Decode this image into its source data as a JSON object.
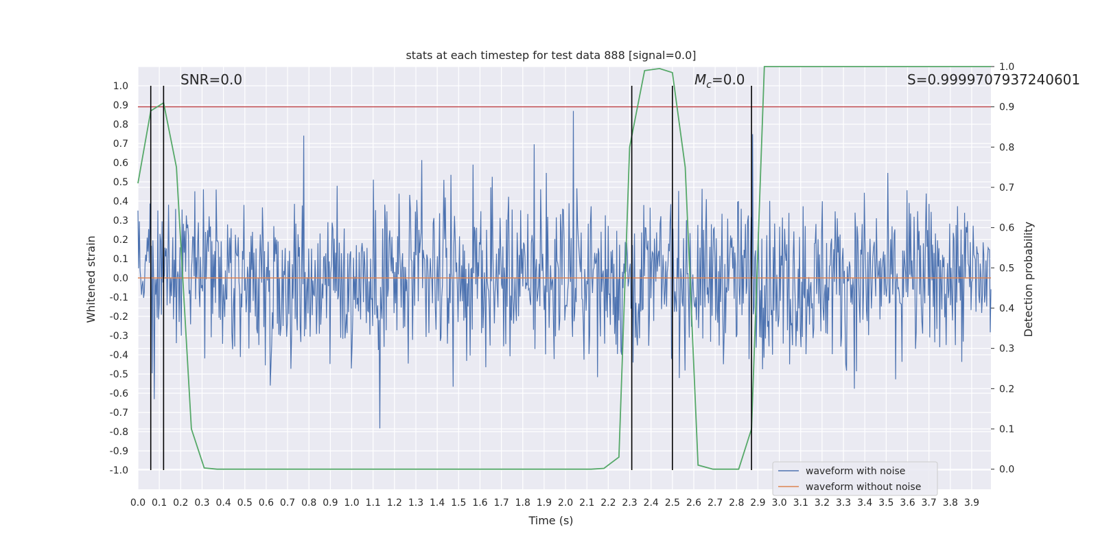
{
  "chart_data": {
    "type": "line",
    "title": "stats at each timestep for test data 888 [signal=0.0]",
    "xlabel": "Time (s)",
    "ylabel": "Whitened strain",
    "y2label": "Detection probability",
    "xlim": [
      0.0,
      3.99
    ],
    "ylim": [
      -1.1,
      1.1
    ],
    "y2lim": [
      -0.05,
      1.0
    ],
    "x_ticks": [
      "0.0",
      "0.1",
      "0.2",
      "0.3",
      "0.4",
      "0.5",
      "0.6",
      "0.7",
      "0.8",
      "0.9",
      "1.0",
      "1.1",
      "1.2",
      "1.3",
      "1.4",
      "1.5",
      "1.6",
      "1.7",
      "1.8",
      "1.9",
      "2.0",
      "2.1",
      "2.2",
      "2.3",
      "2.4",
      "2.5",
      "2.6",
      "2.7",
      "2.8",
      "2.9",
      "3.0",
      "3.1",
      "3.2",
      "3.3",
      "3.4",
      "3.5",
      "3.6",
      "3.7",
      "3.8",
      "3.9"
    ],
    "y_ticks": [
      "1.0",
      "0.9",
      "0.8",
      "0.7",
      "0.6",
      "0.5",
      "0.4",
      "0.3",
      "0.2",
      "0.1",
      "0.0",
      "-0.1",
      "-0.2",
      "-0.3",
      "-0.4",
      "-0.5",
      "-0.6",
      "-0.7",
      "-0.8",
      "-0.9",
      "-1.0"
    ],
    "y2_ticks": [
      "1.0",
      "0.9",
      "0.8",
      "0.7",
      "0.6",
      "0.5",
      "0.4",
      "0.3",
      "0.2",
      "0.1",
      "0.0"
    ],
    "grid": true,
    "legend_position": "bottom-right",
    "series": [
      {
        "name": "waveform with noise",
        "color": "#4c72b0",
        "description_kind": "dense noise trace",
        "sample_count": 1200,
        "amplitude_range": [
          -0.95,
          1.0
        ]
      },
      {
        "name": "waveform without noise",
        "color": "#dd8452",
        "x": [
          0.0,
          3.99
        ],
        "y": [
          0.0,
          0.0
        ]
      },
      {
        "name": "",
        "axis": "y2",
        "color": "#55a868",
        "x": [
          0.0,
          0.06,
          0.12,
          0.18,
          0.25,
          0.31,
          0.37,
          0.5,
          1.0,
          1.5,
          2.0,
          2.12,
          2.18,
          2.25,
          2.3,
          2.37,
          2.44,
          2.5,
          2.56,
          2.62,
          2.69,
          2.75,
          2.81,
          2.87,
          2.93,
          3.0,
          3.5,
          3.99
        ],
        "y": [
          0.71,
          0.89,
          0.91,
          0.75,
          0.1,
          0.003,
          0.0,
          0.0,
          0.0,
          0.0,
          0.0,
          0.0,
          0.002,
          0.03,
          0.8,
          0.99,
          0.995,
          0.985,
          0.75,
          0.01,
          0.0,
          0.0,
          0.0,
          0.1,
          1.0,
          1.0,
          1.0,
          1.0
        ]
      }
    ],
    "threshold_line": {
      "axis": "y2",
      "value": 0.9,
      "color": "#c44e52"
    },
    "vertical_lines": {
      "color": "#000000",
      "x": [
        0.06,
        0.12,
        2.31,
        2.5,
        2.87
      ]
    },
    "annotations": [
      {
        "text": "SNR=0.0"
      },
      {
        "text": "Mc",
        "math_var": "M",
        "math_sub": "c",
        "suffix": "=0.0"
      },
      {
        "text": "S=0.9999707937240601"
      }
    ],
    "colors": {
      "plot_background": "#eaeaf2",
      "grid": "#ffffff"
    }
  }
}
